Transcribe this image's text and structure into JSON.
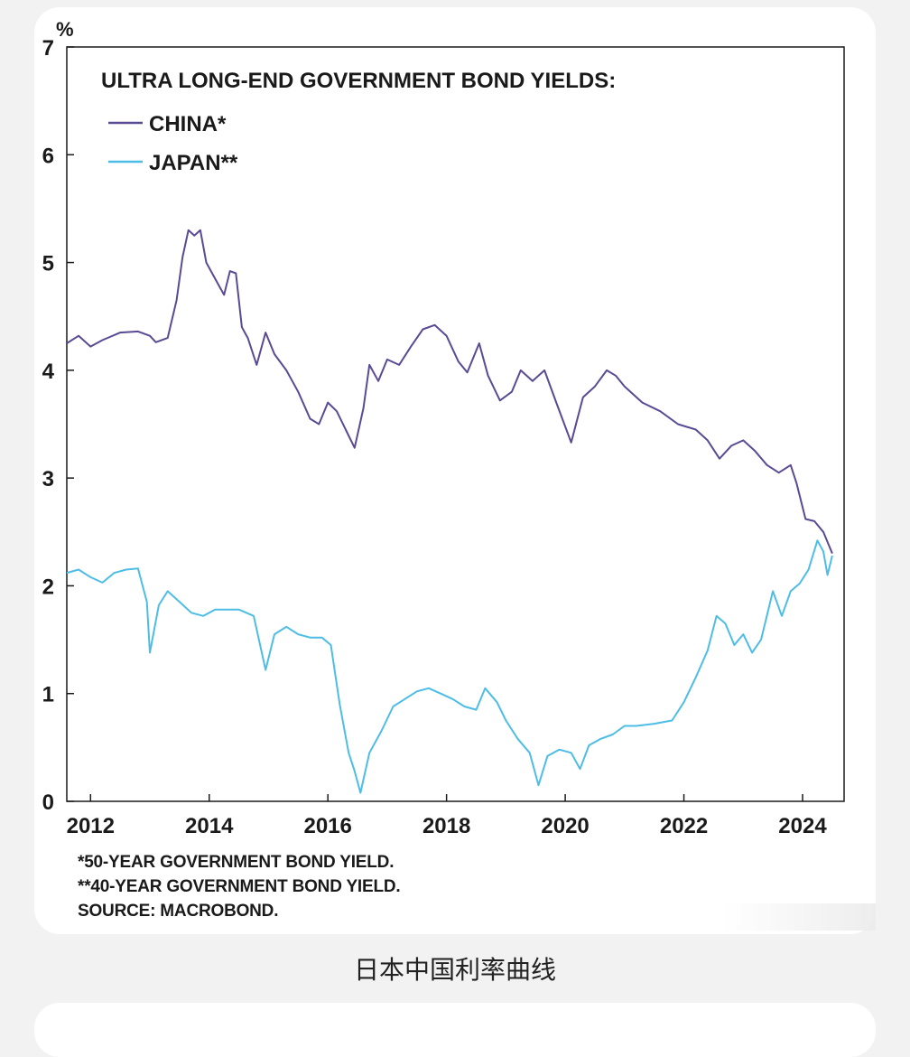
{
  "caption": "日本中国利率曲线",
  "footnotes": [
    "*50-YEAR GOVERNMENT BOND YIELD.",
    "**40-YEAR GOVERNMENT BOND YIELD.",
    "SOURCE: MACROBOND."
  ],
  "chart_data": {
    "type": "line",
    "title": "ULTRA LONG-END GOVERNMENT BOND YIELDS:",
    "ylabel": "%",
    "xlabel": "",
    "ylim": [
      0,
      7
    ],
    "xlim": [
      2011.6,
      2024.7
    ],
    "x_ticks": [
      2012,
      2014,
      2016,
      2018,
      2020,
      2022,
      2024
    ],
    "y_ticks": [
      0,
      1,
      2,
      3,
      4,
      5,
      6,
      7
    ],
    "grid": false,
    "legend_position": "top-left",
    "colors": {
      "china": "#5a4a94",
      "japan": "#4dbde6"
    },
    "series": [
      {
        "name": "CHINA*",
        "color": "#5a4a94",
        "points": [
          [
            2011.6,
            4.25
          ],
          [
            2011.8,
            4.32
          ],
          [
            2012.0,
            4.22
          ],
          [
            2012.2,
            4.28
          ],
          [
            2012.5,
            4.35
          ],
          [
            2012.8,
            4.36
          ],
          [
            2013.0,
            4.32
          ],
          [
            2013.1,
            4.26
          ],
          [
            2013.3,
            4.3
          ],
          [
            2013.45,
            4.65
          ],
          [
            2013.55,
            5.05
          ],
          [
            2013.65,
            5.3
          ],
          [
            2013.75,
            5.25
          ],
          [
            2013.85,
            5.3
          ],
          [
            2013.95,
            5.0
          ],
          [
            2014.1,
            4.85
          ],
          [
            2014.25,
            4.7
          ],
          [
            2014.35,
            4.92
          ],
          [
            2014.45,
            4.9
          ],
          [
            2014.55,
            4.4
          ],
          [
            2014.65,
            4.3
          ],
          [
            2014.8,
            4.05
          ],
          [
            2014.95,
            4.35
          ],
          [
            2015.1,
            4.15
          ],
          [
            2015.3,
            4.0
          ],
          [
            2015.5,
            3.8
          ],
          [
            2015.7,
            3.55
          ],
          [
            2015.85,
            3.5
          ],
          [
            2016.0,
            3.7
          ],
          [
            2016.15,
            3.62
          ],
          [
            2016.3,
            3.45
          ],
          [
            2016.45,
            3.28
          ],
          [
            2016.6,
            3.65
          ],
          [
            2016.7,
            4.05
          ],
          [
            2016.85,
            3.9
          ],
          [
            2017.0,
            4.1
          ],
          [
            2017.2,
            4.05
          ],
          [
            2017.4,
            4.22
          ],
          [
            2017.6,
            4.38
          ],
          [
            2017.8,
            4.42
          ],
          [
            2018.0,
            4.32
          ],
          [
            2018.2,
            4.08
          ],
          [
            2018.35,
            3.98
          ],
          [
            2018.55,
            4.25
          ],
          [
            2018.7,
            3.95
          ],
          [
            2018.9,
            3.72
          ],
          [
            2019.1,
            3.8
          ],
          [
            2019.25,
            4.0
          ],
          [
            2019.45,
            3.9
          ],
          [
            2019.65,
            4.0
          ],
          [
            2019.85,
            3.7
          ],
          [
            2020.1,
            3.33
          ],
          [
            2020.3,
            3.75
          ],
          [
            2020.5,
            3.85
          ],
          [
            2020.7,
            4.0
          ],
          [
            2020.85,
            3.95
          ],
          [
            2021.0,
            3.85
          ],
          [
            2021.3,
            3.7
          ],
          [
            2021.6,
            3.62
          ],
          [
            2021.9,
            3.5
          ],
          [
            2022.2,
            3.45
          ],
          [
            2022.4,
            3.35
          ],
          [
            2022.6,
            3.18
          ],
          [
            2022.8,
            3.3
          ],
          [
            2023.0,
            3.35
          ],
          [
            2023.2,
            3.25
          ],
          [
            2023.4,
            3.12
          ],
          [
            2023.6,
            3.05
          ],
          [
            2023.8,
            3.12
          ],
          [
            2023.9,
            2.95
          ],
          [
            2024.05,
            2.62
          ],
          [
            2024.2,
            2.6
          ],
          [
            2024.35,
            2.5
          ],
          [
            2024.5,
            2.3
          ]
        ]
      },
      {
        "name": "JAPAN**",
        "color": "#4dbde6",
        "points": [
          [
            2011.6,
            2.12
          ],
          [
            2011.8,
            2.15
          ],
          [
            2012.0,
            2.08
          ],
          [
            2012.2,
            2.03
          ],
          [
            2012.4,
            2.12
          ],
          [
            2012.6,
            2.15
          ],
          [
            2012.8,
            2.16
          ],
          [
            2012.95,
            1.85
          ],
          [
            2013.0,
            1.38
          ],
          [
            2013.15,
            1.82
          ],
          [
            2013.3,
            1.95
          ],
          [
            2013.5,
            1.85
          ],
          [
            2013.7,
            1.75
          ],
          [
            2013.9,
            1.72
          ],
          [
            2014.1,
            1.78
          ],
          [
            2014.3,
            1.78
          ],
          [
            2014.5,
            1.78
          ],
          [
            2014.75,
            1.72
          ],
          [
            2014.95,
            1.22
          ],
          [
            2015.1,
            1.55
          ],
          [
            2015.3,
            1.62
          ],
          [
            2015.5,
            1.55
          ],
          [
            2015.7,
            1.52
          ],
          [
            2015.9,
            1.52
          ],
          [
            2016.05,
            1.45
          ],
          [
            2016.2,
            0.9
          ],
          [
            2016.35,
            0.45
          ],
          [
            2016.45,
            0.28
          ],
          [
            2016.55,
            0.08
          ],
          [
            2016.7,
            0.45
          ],
          [
            2016.9,
            0.65
          ],
          [
            2017.1,
            0.88
          ],
          [
            2017.3,
            0.95
          ],
          [
            2017.5,
            1.02
          ],
          [
            2017.7,
            1.05
          ],
          [
            2017.9,
            1.0
          ],
          [
            2018.1,
            0.95
          ],
          [
            2018.3,
            0.88
          ],
          [
            2018.5,
            0.85
          ],
          [
            2018.65,
            1.05
          ],
          [
            2018.85,
            0.92
          ],
          [
            2019.0,
            0.75
          ],
          [
            2019.2,
            0.58
          ],
          [
            2019.4,
            0.45
          ],
          [
            2019.55,
            0.15
          ],
          [
            2019.7,
            0.42
          ],
          [
            2019.9,
            0.48
          ],
          [
            2020.1,
            0.45
          ],
          [
            2020.25,
            0.3
          ],
          [
            2020.4,
            0.52
          ],
          [
            2020.6,
            0.58
          ],
          [
            2020.8,
            0.62
          ],
          [
            2021.0,
            0.7
          ],
          [
            2021.2,
            0.7
          ],
          [
            2021.5,
            0.72
          ],
          [
            2021.8,
            0.75
          ],
          [
            2022.0,
            0.92
          ],
          [
            2022.2,
            1.15
          ],
          [
            2022.4,
            1.4
          ],
          [
            2022.55,
            1.72
          ],
          [
            2022.7,
            1.65
          ],
          [
            2022.85,
            1.45
          ],
          [
            2023.0,
            1.55
          ],
          [
            2023.15,
            1.38
          ],
          [
            2023.3,
            1.5
          ],
          [
            2023.5,
            1.95
          ],
          [
            2023.65,
            1.72
          ],
          [
            2023.8,
            1.95
          ],
          [
            2023.95,
            2.02
          ],
          [
            2024.1,
            2.15
          ],
          [
            2024.25,
            2.42
          ],
          [
            2024.35,
            2.32
          ],
          [
            2024.42,
            2.1
          ],
          [
            2024.5,
            2.28
          ]
        ]
      }
    ]
  }
}
